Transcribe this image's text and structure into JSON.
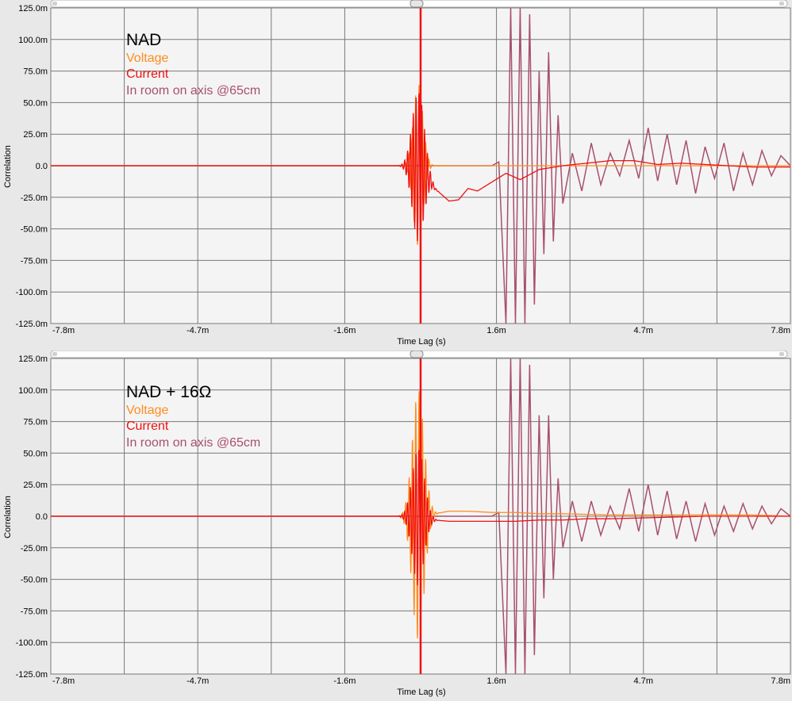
{
  "colors": {
    "voltage": "#ff8c1e",
    "current": "#f01010",
    "room": "#a8506e",
    "grid": "#787878",
    "plot_bg": "#f4f4f4"
  },
  "chart_data": [
    {
      "type": "line",
      "title": "NAD",
      "xlabel": "Time Lag (s)",
      "ylabel": "Correlation",
      "xlim": [
        -7.8,
        7.8
      ],
      "ylim": [
        -125,
        125
      ],
      "x_unit": "ms",
      "y_unit": "milli",
      "x_ticks": [
        -7.8,
        -4.7,
        -1.6,
        1.6,
        4.7,
        7.8
      ],
      "x_tick_labels": [
        "-7.8m",
        "-4.7m",
        "-1.6m",
        "1.6m",
        "4.7m",
        "7.8m"
      ],
      "y_ticks": [
        125,
        100,
        75,
        50,
        25,
        0,
        -25,
        -50,
        -75,
        -100,
        -125
      ],
      "y_tick_labels": [
        "125.0m",
        "100.0m",
        "75.0m",
        "50.0m",
        "25.0m",
        "0.0",
        "-25.0m",
        "-50.0m",
        "-75.0m",
        "-100.0m",
        "-125.0m"
      ],
      "grid": true,
      "legend": "top-left",
      "series": [
        {
          "name": "Voltage",
          "color": "#ff8c1e",
          "x": [
            -7.8,
            -1.0,
            -0.5,
            0.0,
            0.2,
            0.5,
            1.0,
            1.6,
            2.5,
            4.0,
            5.5,
            7.8
          ],
          "y": [
            0,
            0,
            0,
            0,
            0,
            0,
            0,
            0,
            0,
            0,
            0,
            0
          ],
          "burst": {
            "center": -0.05,
            "width": 0.2,
            "amp": 65,
            "period": 0.07
          }
        },
        {
          "name": "Current",
          "color": "#f01010",
          "x": [
            -7.8,
            -1.0,
            -0.4,
            0.0,
            0.15,
            0.3,
            0.45,
            0.6,
            0.8,
            1.0,
            1.2,
            1.5,
            1.8,
            2.1,
            2.5,
            3.0,
            3.5,
            4.0,
            4.5,
            5.0,
            5.5,
            6.0,
            6.5,
            7.0,
            7.8
          ],
          "y": [
            0,
            0,
            0,
            0,
            -8,
            -18,
            -23,
            -28,
            -27,
            -18,
            -20,
            -13,
            -6,
            -11,
            -3,
            0,
            2,
            4,
            4,
            1,
            2,
            1,
            0,
            -1,
            -1
          ],
          "burst": {
            "center": -0.05,
            "width": 0.25,
            "amp": 60,
            "period": 0.06
          },
          "spike": {
            "x": 0.0,
            "top": 125,
            "bottom": -125
          }
        },
        {
          "name": "In room on axis @65cm",
          "color": "#a8506e",
          "x": [
            -7.8,
            1.5,
            1.65,
            1.8,
            1.9,
            2.0,
            2.1,
            2.2,
            2.3,
            2.4,
            2.5,
            2.6,
            2.7,
            2.8,
            2.9,
            3.0,
            3.2,
            3.4,
            3.6,
            3.8,
            4.0,
            4.2,
            4.4,
            4.6,
            4.8,
            5.0,
            5.2,
            5.4,
            5.6,
            5.8,
            6.0,
            6.2,
            6.4,
            6.6,
            6.8,
            7.0,
            7.2,
            7.4,
            7.6,
            7.8
          ],
          "y": [
            0,
            0,
            3,
            -125,
            125,
            -125,
            125,
            -125,
            120,
            -110,
            75,
            -70,
            90,
            -60,
            40,
            -30,
            10,
            -20,
            18,
            -15,
            10,
            -8,
            20,
            -10,
            30,
            -12,
            25,
            -15,
            20,
            -22,
            15,
            -10,
            18,
            -20,
            10,
            -15,
            12,
            -8,
            8,
            0
          ]
        }
      ]
    },
    {
      "type": "line",
      "title": "NAD + 16Ω",
      "xlabel": "Time Lag (s)",
      "ylabel": "Correlation",
      "xlim": [
        -7.8,
        7.8
      ],
      "ylim": [
        -125,
        125
      ],
      "x_unit": "ms",
      "y_unit": "milli",
      "x_ticks": [
        -7.8,
        -4.7,
        -1.6,
        1.6,
        4.7,
        7.8
      ],
      "x_tick_labels": [
        "-7.8m",
        "-4.7m",
        "-1.6m",
        "1.6m",
        "4.7m",
        "7.8m"
      ],
      "y_ticks": [
        125,
        100,
        75,
        50,
        25,
        0,
        -25,
        -50,
        -75,
        -100,
        -125
      ],
      "y_tick_labels": [
        "125.0m",
        "100.0m",
        "75.0m",
        "50.0m",
        "25.0m",
        "0.0",
        "-25.0m",
        "-50.0m",
        "-75.0m",
        "-100.0m",
        "-125.0m"
      ],
      "grid": true,
      "legend": "top-left",
      "series": [
        {
          "name": "Voltage",
          "color": "#ff8c1e",
          "x": [
            -7.8,
            -1.0,
            -0.3,
            0.0,
            0.3,
            0.6,
            1.0,
            1.5,
            2.0,
            2.5,
            3.0,
            4.0,
            5.0,
            6.0,
            7.0,
            7.8
          ],
          "y": [
            0,
            0,
            0,
            0,
            2,
            4,
            4,
            3,
            3,
            2,
            2,
            1,
            1,
            1,
            1,
            0
          ],
          "burst": {
            "center": -0.05,
            "width": 0.25,
            "amp": 100,
            "period": 0.07
          }
        },
        {
          "name": "Current",
          "color": "#f01010",
          "x": [
            -7.8,
            -1.0,
            -0.3,
            0.0,
            0.3,
            0.6,
            1.0,
            1.5,
            2.0,
            2.5,
            3.0,
            3.5,
            4.0,
            5.0,
            6.0,
            7.0,
            7.8
          ],
          "y": [
            0,
            0,
            0,
            0,
            -3,
            -4,
            -4,
            -4,
            -4,
            -3,
            -3,
            -2,
            -2,
            -1,
            0,
            0,
            0
          ],
          "burst": {
            "center": -0.05,
            "width": 0.25,
            "amp": 55,
            "period": 0.06
          },
          "spike": {
            "x": 0.0,
            "top": 125,
            "bottom": -125
          }
        },
        {
          "name": "In room on axis @65cm",
          "color": "#a8506e",
          "x": [
            -7.8,
            1.5,
            1.65,
            1.8,
            1.9,
            2.0,
            2.1,
            2.2,
            2.3,
            2.4,
            2.5,
            2.6,
            2.7,
            2.8,
            2.9,
            3.0,
            3.2,
            3.4,
            3.6,
            3.8,
            4.0,
            4.2,
            4.4,
            4.6,
            4.8,
            5.0,
            5.2,
            5.4,
            5.6,
            5.8,
            6.0,
            6.2,
            6.4,
            6.6,
            6.8,
            7.0,
            7.2,
            7.4,
            7.6,
            7.8
          ],
          "y": [
            0,
            0,
            3,
            -125,
            125,
            -125,
            125,
            -125,
            120,
            -110,
            80,
            -65,
            80,
            -50,
            30,
            -25,
            12,
            -20,
            12,
            -15,
            8,
            -10,
            22,
            -12,
            25,
            -15,
            20,
            -18,
            12,
            -20,
            10,
            -15,
            8,
            -12,
            10,
            -10,
            8,
            -6,
            6,
            0
          ]
        }
      ]
    }
  ]
}
